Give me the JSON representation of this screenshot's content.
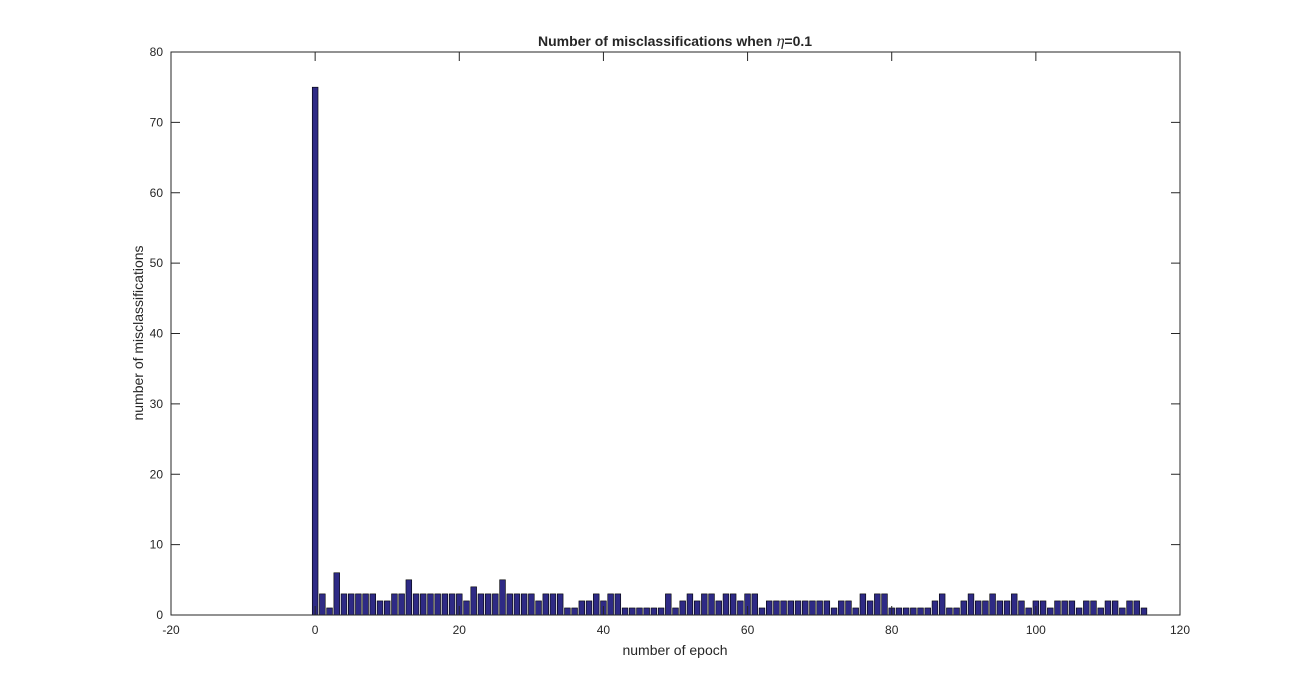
{
  "chart_data": {
    "type": "bar",
    "title_prefix": "Number of misclassifications when ",
    "title_symbol": "η",
    "title_suffix": "=0.1",
    "xlabel": "number of epoch",
    "ylabel": "number of misclassifications",
    "xlim": [
      -20,
      120
    ],
    "ylim": [
      0,
      80
    ],
    "xticks": [
      -20,
      0,
      20,
      40,
      60,
      80,
      100,
      120
    ],
    "yticks": [
      0,
      10,
      20,
      30,
      40,
      50,
      60,
      70,
      80
    ],
    "bar_color": "#2e2a85",
    "bar_edge_color": "#000000",
    "grid": false,
    "x": [
      0,
      1,
      2,
      3,
      4,
      5,
      6,
      7,
      8,
      9,
      10,
      11,
      12,
      13,
      14,
      15,
      16,
      17,
      18,
      19,
      20,
      21,
      22,
      23,
      24,
      25,
      26,
      27,
      28,
      29,
      30,
      31,
      32,
      33,
      34,
      35,
      36,
      37,
      38,
      39,
      40,
      41,
      42,
      43,
      44,
      45,
      46,
      47,
      48,
      49,
      50,
      51,
      52,
      53,
      54,
      55,
      56,
      57,
      58,
      59,
      60,
      61,
      62,
      63,
      64,
      65,
      66,
      67,
      68,
      69,
      70,
      71,
      72,
      73,
      74,
      75,
      76,
      77,
      78,
      79,
      80,
      81,
      82,
      83,
      84,
      85,
      86,
      87,
      88,
      89,
      90,
      91,
      92,
      93,
      94,
      95,
      96,
      97,
      98,
      99,
      100,
      101,
      102,
      103,
      104,
      105,
      106,
      107,
      108,
      109,
      110,
      111,
      112,
      113,
      114,
      115
    ],
    "values": [
      75,
      3,
      1,
      6,
      3,
      3,
      3,
      3,
      3,
      2,
      2,
      3,
      3,
      5,
      3,
      3,
      3,
      3,
      3,
      3,
      3,
      2,
      4,
      3,
      3,
      3,
      5,
      3,
      3,
      3,
      3,
      2,
      3,
      3,
      3,
      1,
      1,
      2,
      2,
      3,
      2,
      3,
      3,
      1,
      1,
      1,
      1,
      1,
      1,
      3,
      1,
      2,
      3,
      2,
      3,
      3,
      2,
      3,
      3,
      2,
      3,
      3,
      1,
      2,
      2,
      2,
      2,
      2,
      2,
      2,
      2,
      2,
      1,
      2,
      2,
      1,
      3,
      2,
      3,
      3,
      1,
      1,
      1,
      1,
      1,
      1,
      2,
      3,
      1,
      1,
      2,
      3,
      2,
      2,
      3,
      2,
      2,
      3,
      2,
      1,
      2,
      2,
      1,
      2,
      2,
      2,
      1,
      2,
      2,
      1,
      2,
      2,
      1,
      2,
      2,
      1
    ]
  }
}
